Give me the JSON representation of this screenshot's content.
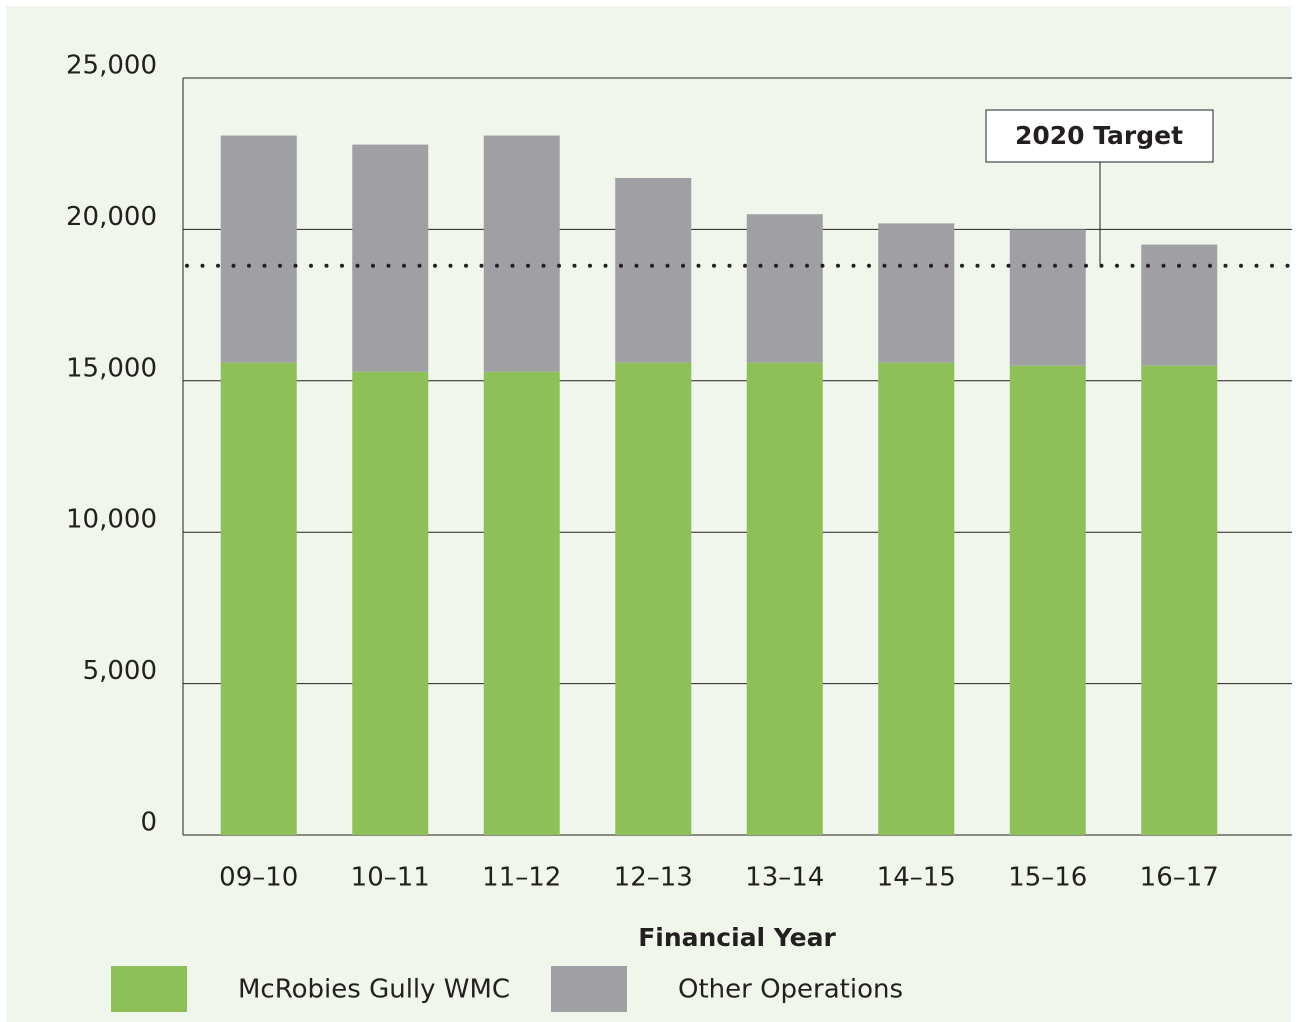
{
  "chart_data": {
    "type": "stacked-bar",
    "categories": [
      "09–10",
      "10–11",
      "11–12",
      "12–13",
      "13–14",
      "14–15",
      "15–16",
      "16–17"
    ],
    "series": [
      {
        "name": "McRobies Gully WMC",
        "color": "#8dc057",
        "values": [
          15600,
          15300,
          15300,
          15600,
          15600,
          15600,
          15500,
          15500
        ]
      },
      {
        "name": "Other Operations",
        "color": "#a09fa4",
        "values": [
          7500,
          7500,
          7800,
          6100,
          4900,
          4600,
          4500,
          4000
        ]
      }
    ],
    "ylim": [
      0,
      25000
    ],
    "yticks": [
      0,
      {
        "value": 5000,
        "label": "5,000"
      },
      {
        "value": 10000,
        "label": "10,000"
      },
      {
        "value": 15000,
        "label": "15,000"
      },
      {
        "value": 20000,
        "label": "20,000"
      },
      {
        "value": 25000,
        "label": "25,000"
      }
    ],
    "xlabel": "Financial Year",
    "target": {
      "label": "2020 Target",
      "value": 18800
    },
    "grid": true
  }
}
